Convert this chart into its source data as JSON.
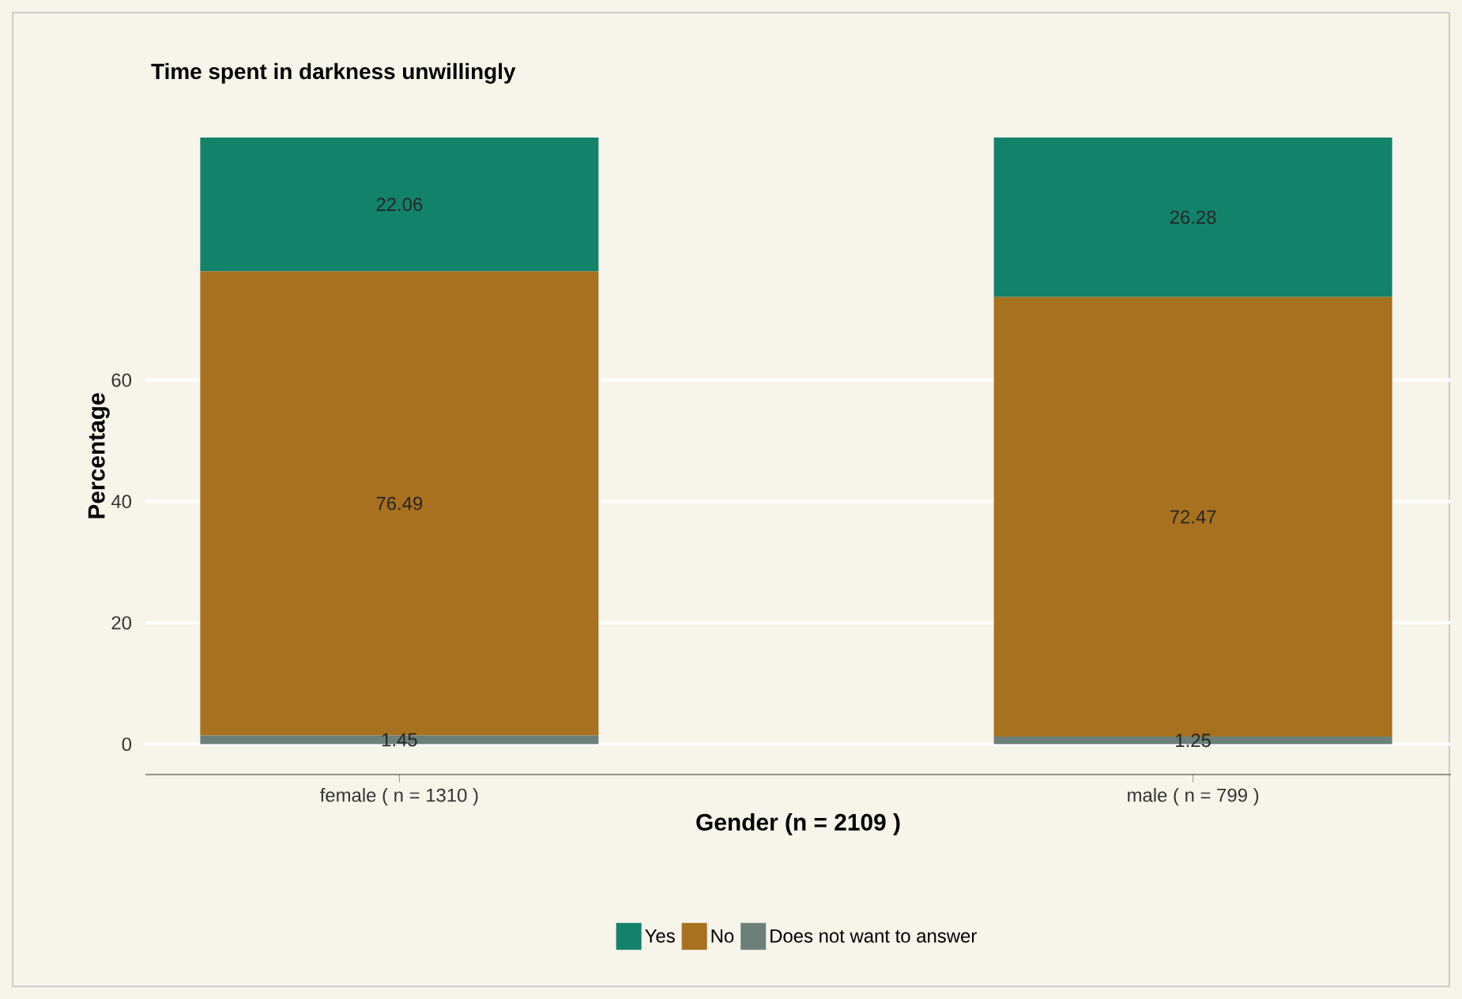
{
  "chart_data": {
    "type": "bar",
    "stacked": true,
    "title": "Time spent in darkness unwillingly",
    "xlabel": "Gender (n =  2109 )",
    "ylabel": "Percentage",
    "categories": [
      "female ( n =  1310 )",
      "male ( n =  799 )"
    ],
    "series": [
      {
        "name": "Does not want to answer",
        "color": "#6b8078",
        "values": [
          1.45,
          1.25
        ]
      },
      {
        "name": "No",
        "color": "#a8711f",
        "values": [
          76.49,
          72.47
        ]
      },
      {
        "name": "Yes",
        "color": "#12836a",
        "values": [
          22.06,
          26.28
        ]
      }
    ],
    "ylim": [
      -5,
      100
    ],
    "yticks": [
      0,
      20,
      40,
      60
    ],
    "grid": "y",
    "legend": "bottom",
    "data_labels": true
  }
}
